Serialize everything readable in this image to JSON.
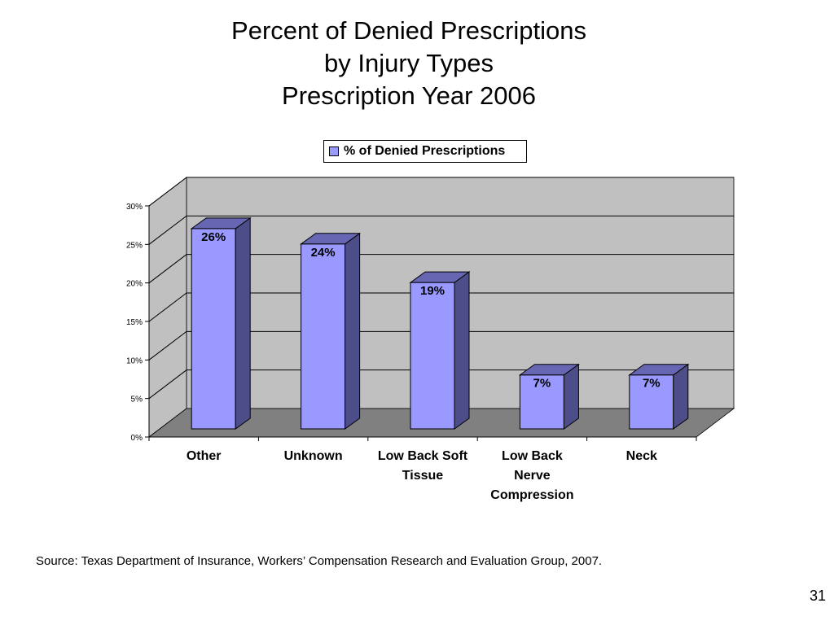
{
  "slide": {
    "source": "Source: Texas Department of Insurance, Workers’ Compensation Research and Evaluation Group, 2007.",
    "page_number": "31"
  },
  "chart_data": {
    "type": "bar",
    "title_lines": [
      "Percent of Denied Prescriptions",
      "by Injury Types",
      "Prescription Year 2006"
    ],
    "categories": [
      "Other",
      "Unknown",
      "Low Back Soft Tissue",
      "Low Back Nerve Compression",
      "Neck"
    ],
    "category_label_lines": [
      [
        "Other"
      ],
      [
        "Unknown"
      ],
      [
        "Low Back Soft",
        "Tissue"
      ],
      [
        "Low Back",
        "Nerve",
        "Compression"
      ],
      [
        "Neck"
      ]
    ],
    "series": [
      {
        "name": "% of Denied Prescriptions",
        "values": [
          26,
          24,
          19,
          7,
          7
        ],
        "data_labels": [
          "26%",
          "24%",
          "19%",
          "7%",
          "7%"
        ],
        "color": "#9999ff"
      }
    ],
    "y_ticks": [
      "0%",
      "5%",
      "10%",
      "15%",
      "20%",
      "25%",
      "30%"
    ],
    "ylim": [
      0,
      30
    ],
    "grid": true,
    "legend_position": "top-center",
    "style": "3d-column",
    "colors": {
      "bar_front": "#9999ff",
      "bar_side": "#4d4d8a",
      "bar_top": "#6666b3",
      "wall": "#c0c0c0",
      "floor": "#808080"
    }
  }
}
